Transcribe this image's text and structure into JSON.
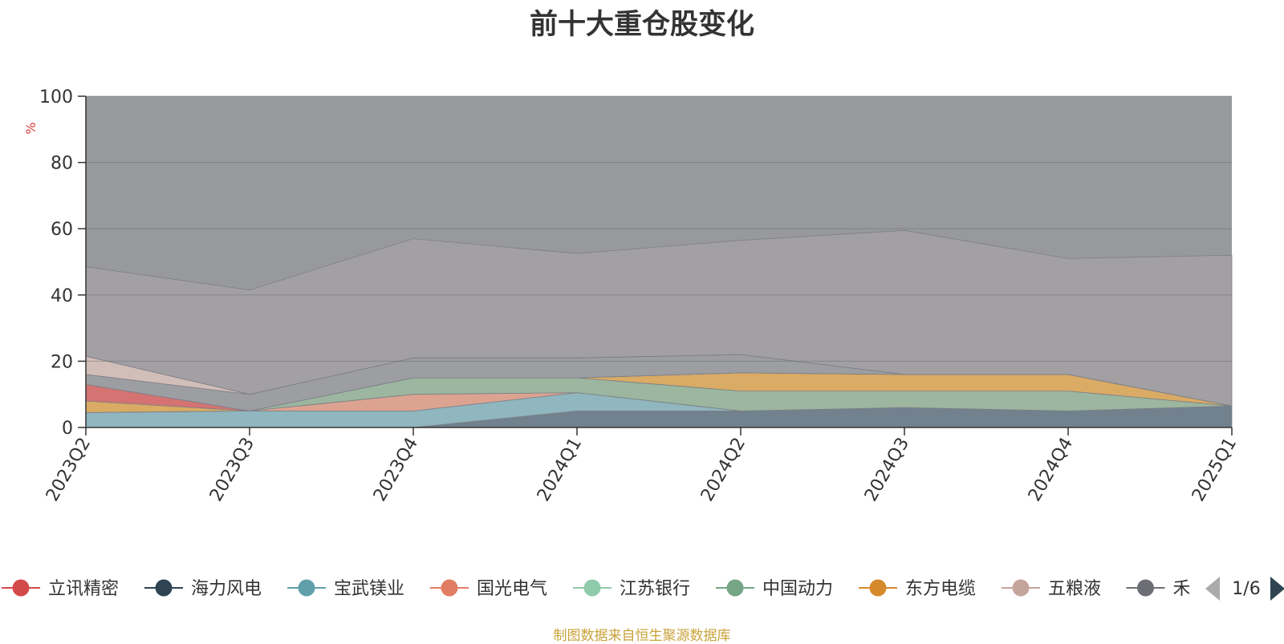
{
  "chart_data": {
    "type": "area",
    "stacked": true,
    "title": "前十大重仓股变化",
    "ylabel": "%",
    "ylim": [
      0,
      100
    ],
    "yticks": [
      0,
      20,
      40,
      60,
      80,
      100
    ],
    "grid": true,
    "categories": [
      "2023Q2",
      "2023Q3",
      "2023Q4",
      "2024Q1",
      "2024Q2",
      "2024Q3",
      "2024Q4",
      "2025Q1"
    ],
    "legend_position": "bottom",
    "legend_page": "1/6",
    "series": [
      {
        "name": "海力风电",
        "color": "#6e7f8d",
        "values": [
          0,
          0,
          0,
          5,
          5,
          6,
          5,
          6.5
        ]
      },
      {
        "name": "宝武镁业",
        "color": "#8fb8c2",
        "values": [
          4.5,
          5,
          5,
          5.5,
          0,
          0,
          0,
          0
        ]
      },
      {
        "name": "国光电气",
        "color": "#e3a490",
        "values": [
          0,
          0,
          5,
          0,
          0,
          0,
          0,
          0
        ]
      },
      {
        "name": "中国动力",
        "color": "#9cb99f",
        "values": [
          0,
          0,
          5,
          4.5,
          6,
          5,
          6,
          0
        ]
      },
      {
        "name": "东方电缆",
        "color": "#e0ad5f",
        "values": [
          3.5,
          0,
          0,
          0,
          5.5,
          5,
          5,
          0
        ]
      },
      {
        "name": "立讯精密",
        "color": "#d9706f",
        "values": [
          5,
          0,
          0,
          0,
          0,
          0,
          0,
          0
        ]
      },
      {
        "name": "禾",
        "color": "#9c9ea3",
        "values": [
          3,
          5,
          6,
          6,
          5.5,
          0,
          0,
          0
        ]
      },
      {
        "name": "五粮液",
        "color": "#d7c1bb",
        "values": [
          5.5,
          0,
          0,
          0,
          0,
          0,
          0,
          0
        ]
      }
    ],
    "top_boundary": [
      48.5,
      41.5,
      57,
      52.5,
      56.5,
      59.5,
      51,
      52
    ]
  },
  "legend": {
    "items": [
      {
        "name": "立讯精密",
        "color": "#d44a4a"
      },
      {
        "name": "海力风电",
        "color": "#2e4453"
      },
      {
        "name": "宝武镁业",
        "color": "#5fa0ab"
      },
      {
        "name": "国光电气",
        "color": "#e07d63"
      },
      {
        "name": "江苏银行",
        "color": "#90cbab"
      },
      {
        "name": "中国动力",
        "color": "#75a585"
      },
      {
        "name": "东方电缆",
        "color": "#d5892a"
      },
      {
        "name": "五粮液",
        "color": "#c5a49b"
      },
      {
        "name": "禾",
        "color": "#6d6e75"
      }
    ],
    "page": "1/6"
  },
  "source_note": "制图数据来自恒生聚源数据库"
}
